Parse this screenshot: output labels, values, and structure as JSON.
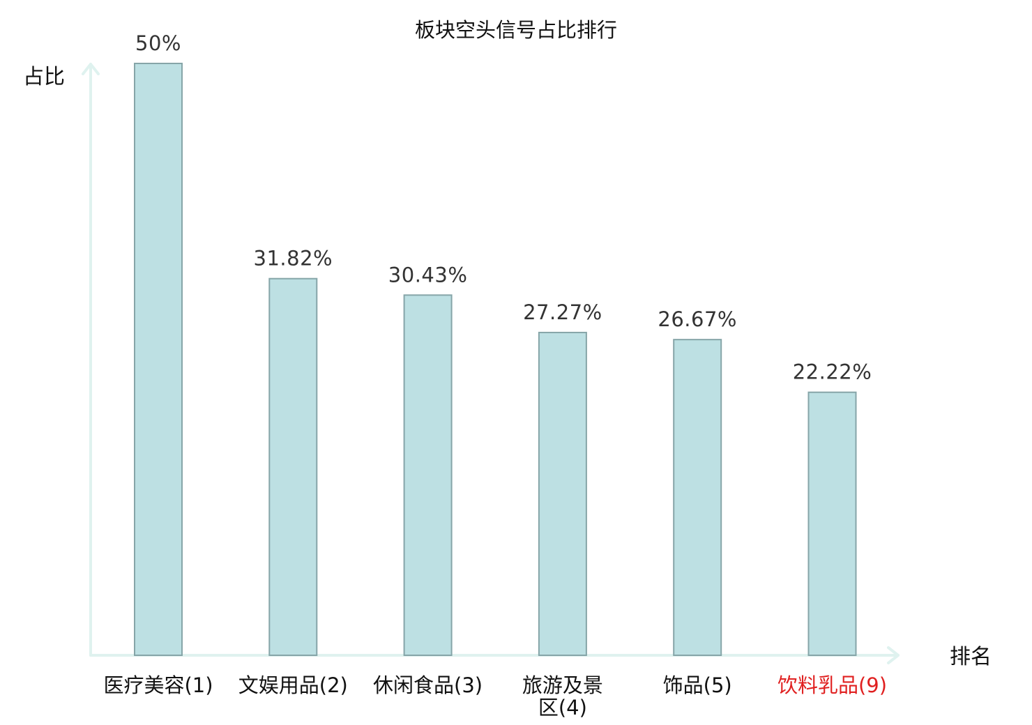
{
  "chart_data": {
    "type": "bar",
    "title": "板块空头信号占比排行",
    "ylabel": "占比",
    "xlabel": "排名",
    "categories": [
      "医疗美容(1)",
      "文娱用品(2)",
      "休闲食品(3)",
      "旅游及景区(4)",
      "饰品(5)",
      "饮料乳品(9)"
    ],
    "values": [
      50,
      31.82,
      30.43,
      27.27,
      26.67,
      22.22
    ],
    "value_labels": [
      "50%",
      "31.82%",
      "30.43%",
      "27.27%",
      "26.67%",
      "22.22%"
    ],
    "highlight_category": "饮料乳品(9)",
    "ylim": [
      0,
      50
    ],
    "grid": false,
    "legend": "none",
    "colors": {
      "bar_fill": "#bde0e3",
      "bar_stroke": "#86a5a8",
      "axis": "#dff2ef",
      "highlight_text": "#e02020"
    }
  }
}
